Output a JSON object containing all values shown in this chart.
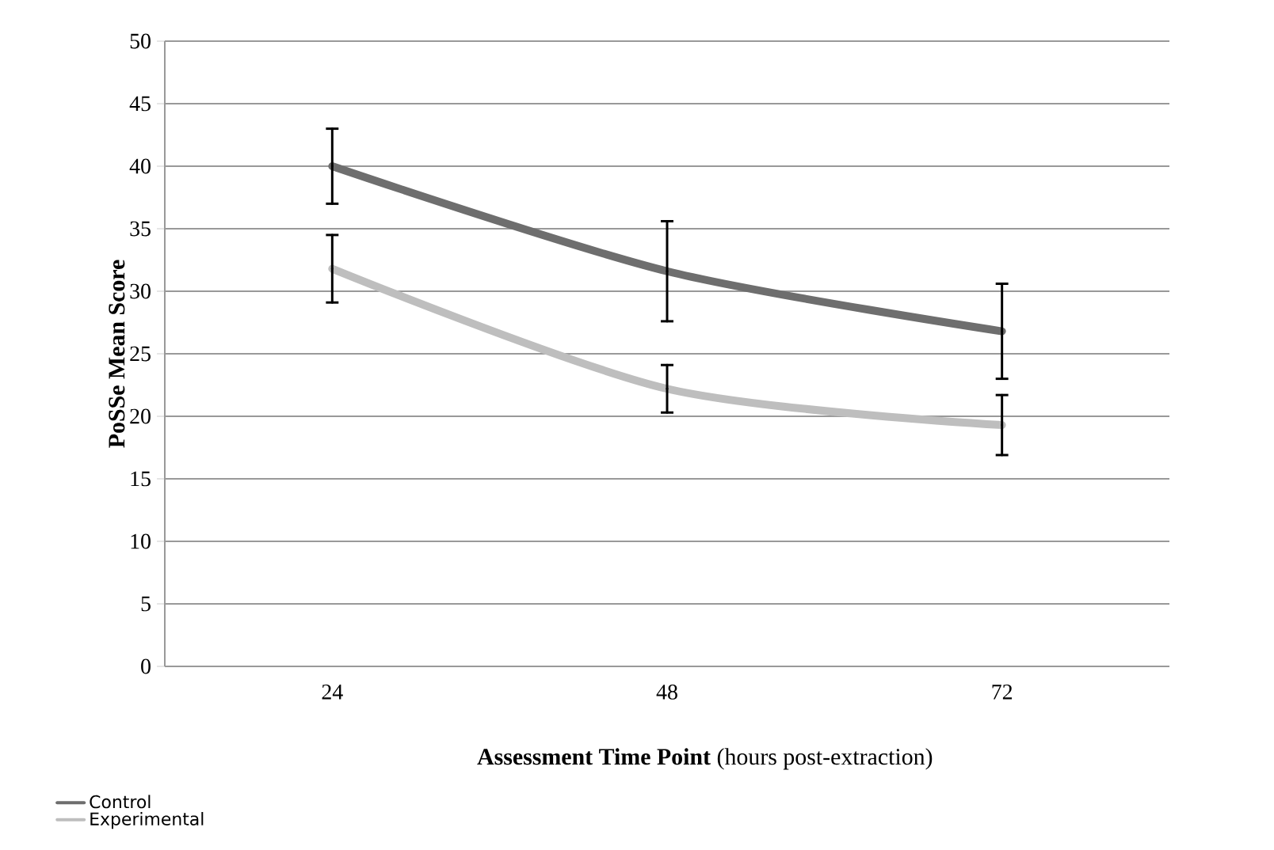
{
  "chart_data": {
    "type": "line",
    "xlabel": "**Assessment Time Point** (hours post-extraction)",
    "ylabel": "PoSSe Mean Score",
    "categories": [
      "24",
      "48",
      "72"
    ],
    "series": [
      {
        "name": "Control",
        "color": "#6e6e6e",
        "values": [
          40,
          31.6,
          26.8
        ],
        "errors": [
          3,
          4,
          3.8
        ]
      },
      {
        "name": "Experimental",
        "color": "#bebebe",
        "values": [
          31.8,
          22.2,
          19.3
        ],
        "errors": [
          2.7,
          1.9,
          2.4
        ]
      }
    ],
    "ylim": [
      0,
      50
    ],
    "yticks": [
      0,
      5,
      10,
      15,
      20,
      25,
      30,
      35,
      40,
      45,
      50
    ],
    "grid": "y",
    "legend": "bottom left",
    "marker": "none",
    "line_style": "solid"
  }
}
